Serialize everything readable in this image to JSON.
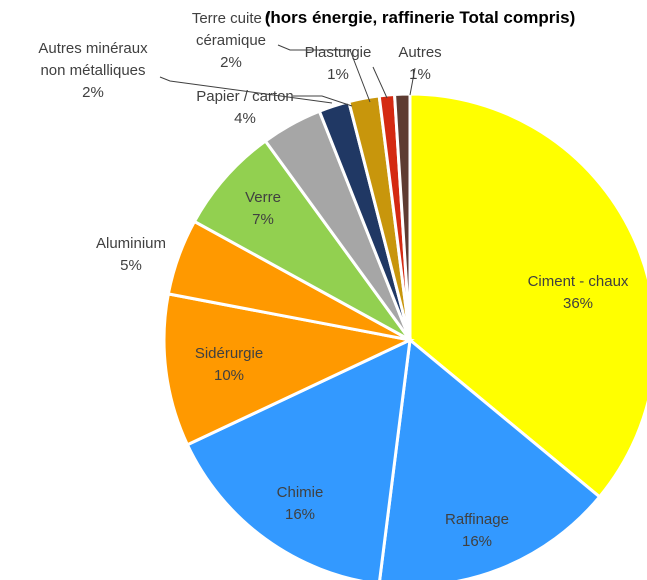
{
  "chart_data": {
    "type": "pie",
    "title": "(hors énergie, raffinerie Total compris)",
    "slices": [
      {
        "name": "Ciment - chaux",
        "value": 36,
        "label": "36%",
        "color": "#ffff00"
      },
      {
        "name": "Raffinage",
        "value": 16,
        "label": "16%",
        "color": "#3399ff"
      },
      {
        "name": "Chimie",
        "value": 16,
        "label": "16%",
        "color": "#3399ff"
      },
      {
        "name": "Sidérurgie",
        "value": 10,
        "label": "10%",
        "color": "#ff9900"
      },
      {
        "name": "Aluminium",
        "value": 5,
        "label": "5%",
        "color": "#ff9900"
      },
      {
        "name": "Verre",
        "value": 7,
        "label": "7%",
        "color": "#92d050"
      },
      {
        "name": "Papier / carton",
        "value": 4,
        "label": "4%",
        "color": "#a6a6a6"
      },
      {
        "name": "Autres minéraux non métalliques",
        "value": 2,
        "label": "2%",
        "color": "#203864"
      },
      {
        "name": "Terre cuite / céramique",
        "value": 2,
        "label": "2%",
        "color": "#c8960c"
      },
      {
        "name": "Plasturgie",
        "value": 1,
        "label": "1%",
        "color": "#d42a12"
      },
      {
        "name": "Autres",
        "value": 1,
        "label": "1%",
        "color": "#5e3c32"
      }
    ]
  }
}
